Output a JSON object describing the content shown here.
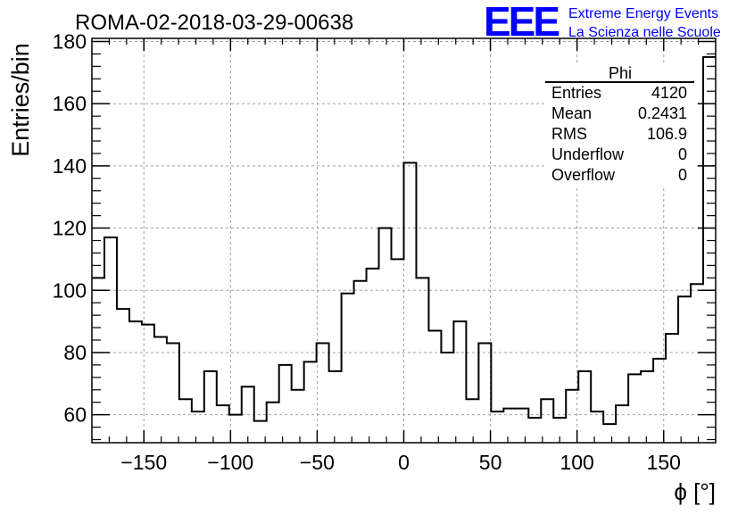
{
  "chart_data": {
    "type": "histogram",
    "title": "ROMA-02-2018-03-29-00638",
    "xlabel": "ϕ [°]",
    "ylabel": "Entries/bin",
    "xlim": [
      -180,
      180
    ],
    "ylim": [
      51,
      181
    ],
    "grid": true,
    "bin_width": 7.2,
    "x_ticks": [
      -150,
      -100,
      -50,
      0,
      50,
      100,
      150
    ],
    "x_tick_labels": [
      "−150",
      "−100",
      "−50",
      "0",
      "50",
      "100",
      "150"
    ],
    "y_ticks": [
      60,
      80,
      100,
      120,
      140,
      160,
      180
    ],
    "y_tick_labels": [
      "60",
      "80",
      "100",
      "120",
      "140",
      "160",
      "180"
    ],
    "bin_contents": [
      104,
      117,
      94,
      90,
      89,
      85,
      83,
      65,
      61,
      74,
      63,
      60,
      69,
      58,
      64,
      76,
      68,
      77,
      83,
      74,
      99,
      103,
      107,
      120,
      110,
      141,
      104,
      87,
      80,
      90,
      65,
      83,
      61,
      62,
      62,
      59,
      65,
      59,
      68,
      74,
      61,
      57,
      63,
      73,
      74,
      78,
      86,
      98,
      102,
      175
    ],
    "stats": {
      "name": "Phi",
      "rows": [
        {
          "label": "Entries",
          "value": "4120"
        },
        {
          "label": "Mean",
          "value": "0.2431"
        },
        {
          "label": "RMS",
          "value": "106.9"
        },
        {
          "label": "Underflow",
          "value": "0"
        },
        {
          "label": "Overflow",
          "value": "0"
        }
      ]
    }
  },
  "logo": {
    "mark": "EEE",
    "line1": "Extreme Energy Events",
    "line2": "La Scienza nelle Scuole",
    "color": "#0000ff"
  }
}
